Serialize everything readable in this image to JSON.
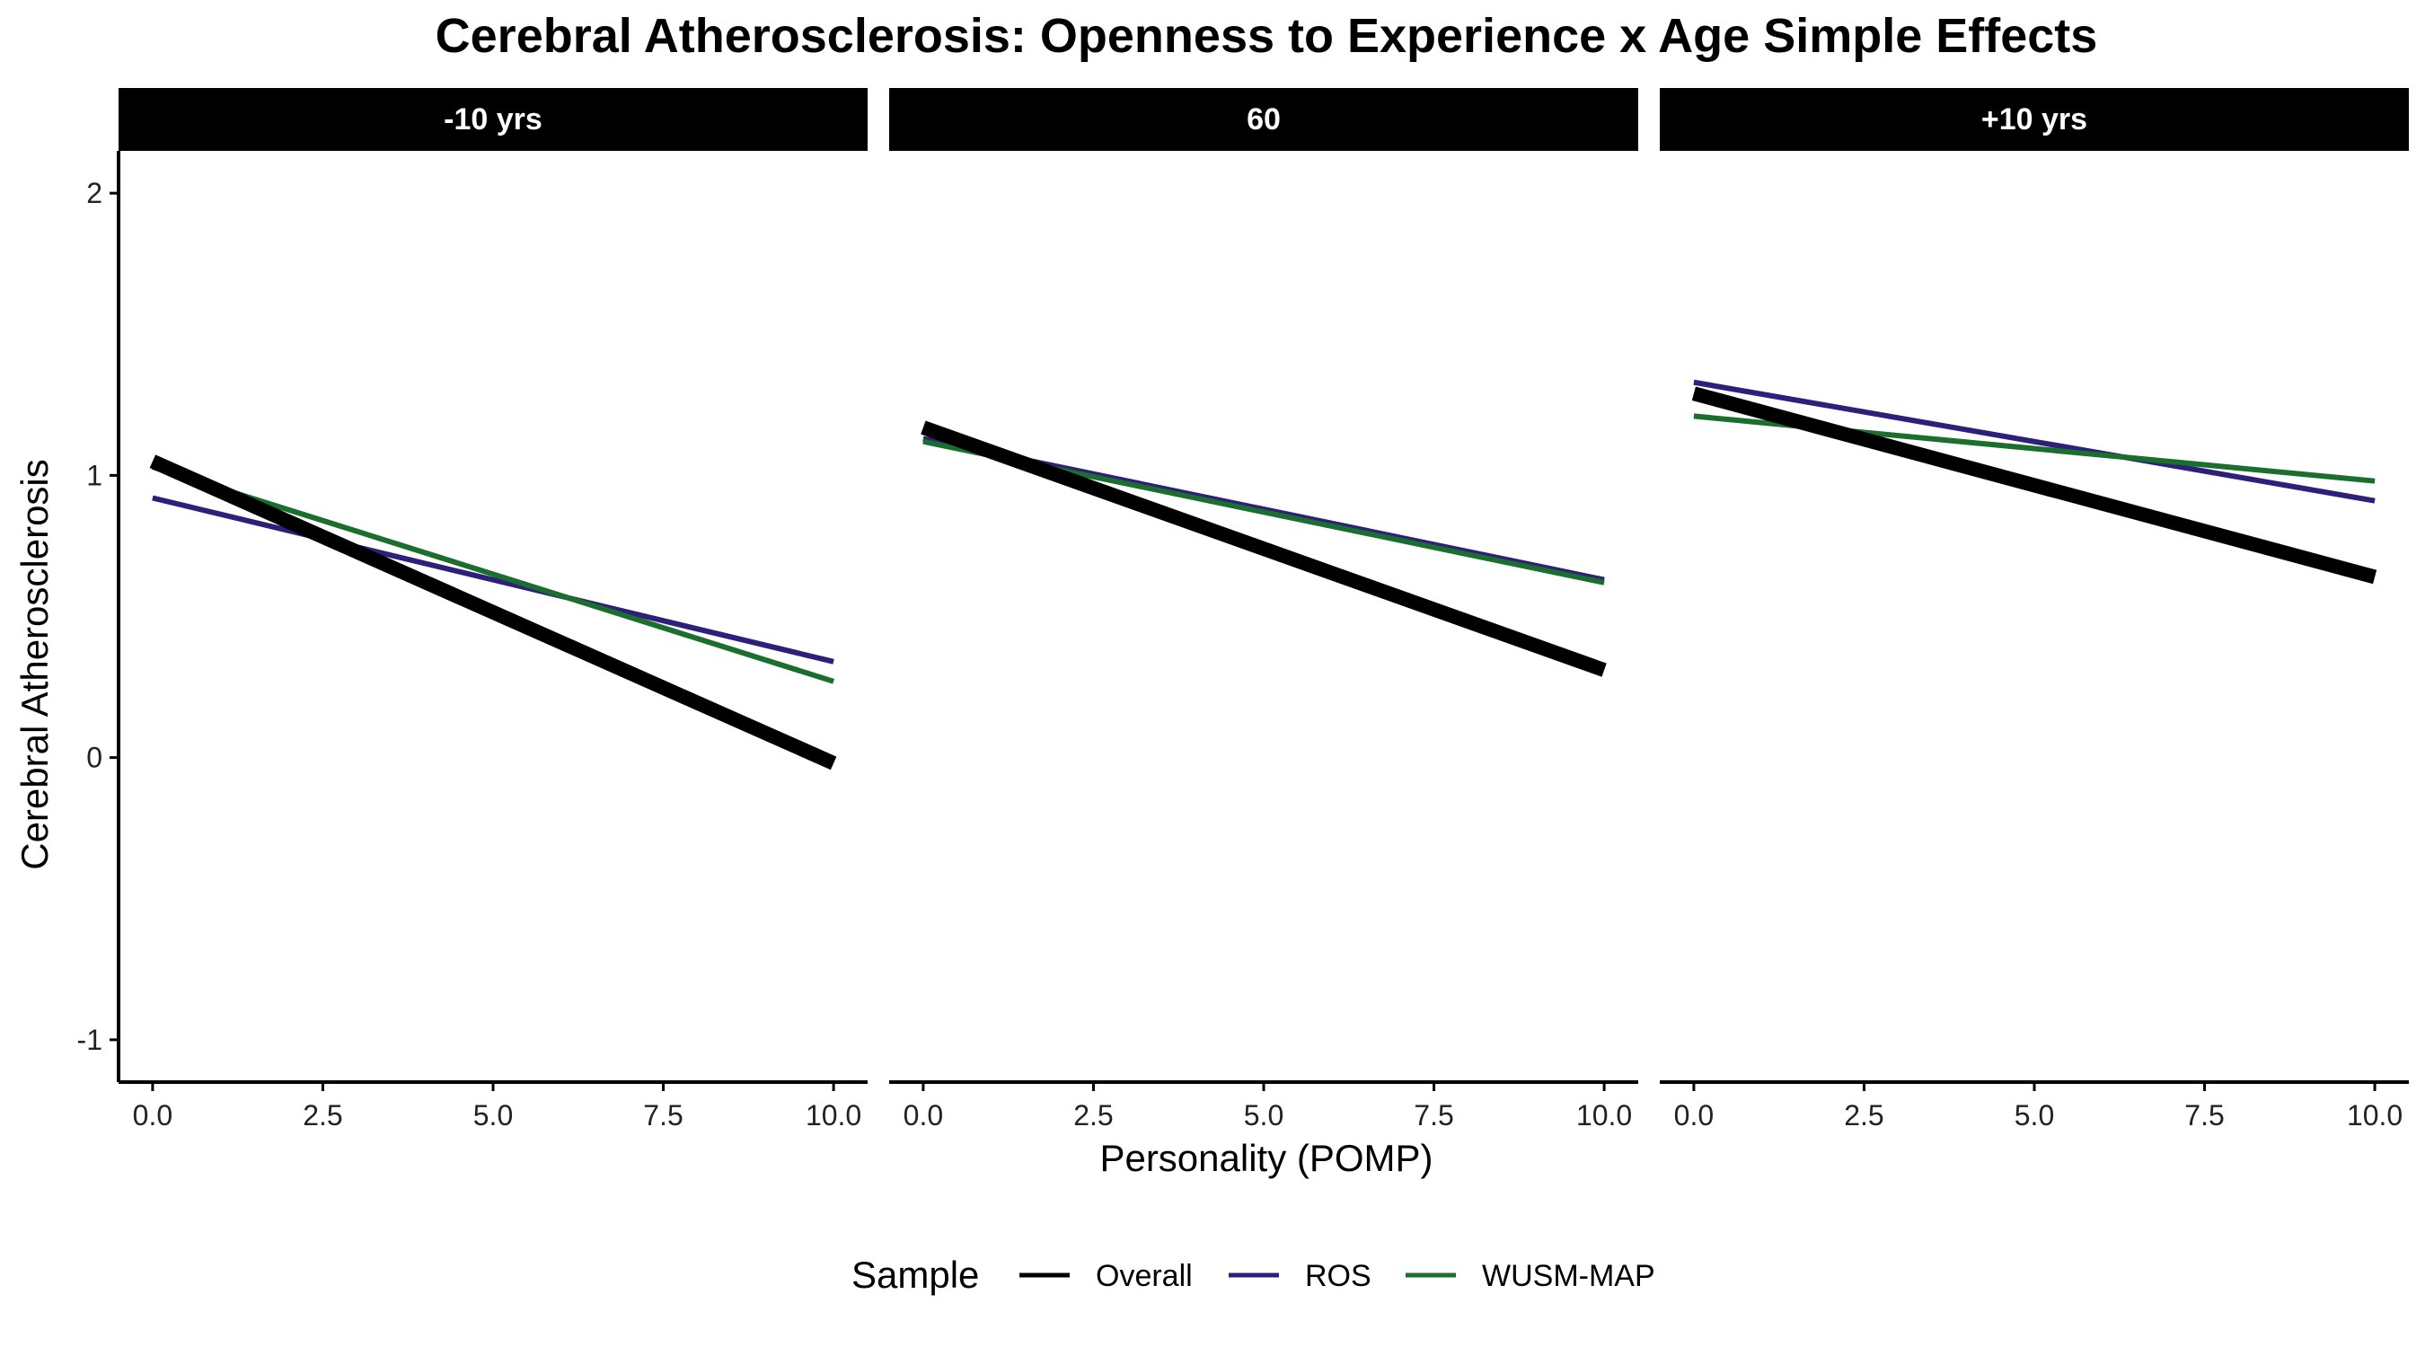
{
  "chart_data": {
    "type": "line",
    "title": "Cerebral Atherosclerosis: Openness to Experience x Age Simple Effects",
    "xlabel": "Personality (POMP)",
    "ylabel": "Cerebral Atherosclerosis",
    "xlim": [
      -0.5,
      10.5
    ],
    "ylim": [
      -1.15,
      2.15
    ],
    "xticks": [
      0,
      2.5,
      5,
      7.5,
      10
    ],
    "xtick_labels": [
      "0.0",
      "2.5",
      "5.0",
      "7.5",
      "10.0"
    ],
    "yticks": [
      -1,
      0,
      1,
      2
    ],
    "ytick_labels": [
      "-1",
      "0",
      "1",
      "2"
    ],
    "grid": false,
    "legend": {
      "title": "Sample",
      "position": "bottom",
      "entries": [
        "Overall",
        "ROS",
        "WUSM-MAP"
      ]
    },
    "colors": {
      "Overall": "#000000",
      "ROS": "#2e1f7a",
      "WUSM-MAP": "#1a6e2e",
      "strip_background": "#000000",
      "strip_text": "#ffffff"
    },
    "panels": [
      {
        "label": "-10 yrs",
        "series": [
          {
            "name": "Overall",
            "x": [
              0,
              10
            ],
            "y": [
              1.05,
              -0.02
            ]
          },
          {
            "name": "ROS",
            "x": [
              0,
              10
            ],
            "y": [
              0.92,
              0.34
            ]
          },
          {
            "name": "WUSM-MAP",
            "x": [
              0,
              10
            ],
            "y": [
              1.03,
              0.27
            ]
          }
        ]
      },
      {
        "label": "60",
        "series": [
          {
            "name": "Overall",
            "x": [
              0,
              10
            ],
            "y": [
              1.17,
              0.31
            ]
          },
          {
            "name": "ROS",
            "x": [
              0,
              10
            ],
            "y": [
              1.13,
              0.63
            ]
          },
          {
            "name": "WUSM-MAP",
            "x": [
              0,
              10
            ],
            "y": [
              1.12,
              0.62
            ]
          }
        ]
      },
      {
        "label": "+10 yrs",
        "series": [
          {
            "name": "Overall",
            "x": [
              0,
              10
            ],
            "y": [
              1.29,
              0.64
            ]
          },
          {
            "name": "ROS",
            "x": [
              0,
              10
            ],
            "y": [
              1.33,
              0.91
            ]
          },
          {
            "name": "WUSM-MAP",
            "x": [
              0,
              10
            ],
            "y": [
              1.21,
              0.98
            ]
          }
        ]
      }
    ]
  }
}
